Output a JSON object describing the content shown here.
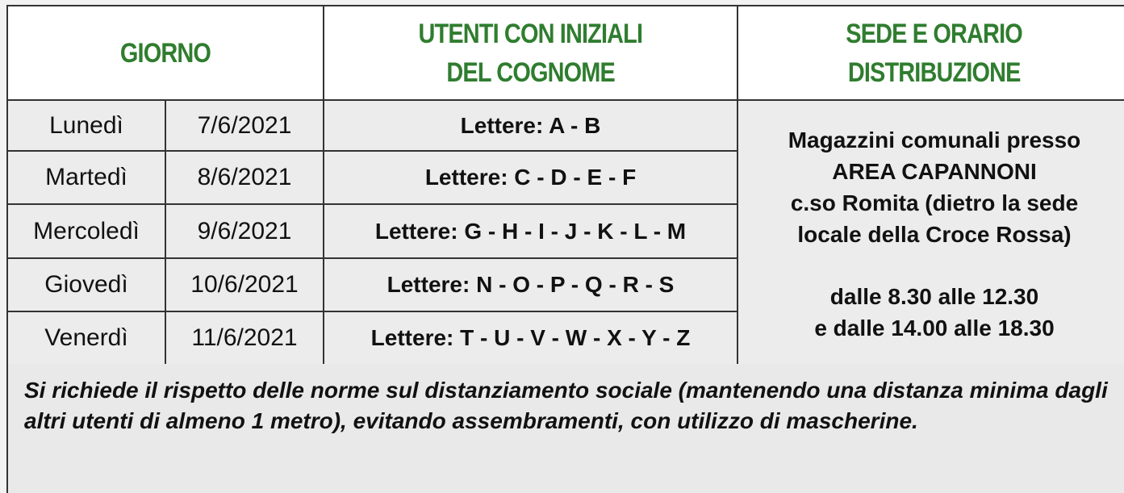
{
  "header": {
    "giorno": "GIORNO",
    "utenti_line1": "UTENTI CON INIZIALI",
    "utenti_line2": "DEL COGNOME",
    "sede_line1": "SEDE E ORARIO",
    "sede_line2": "DISTRIBUZIONE"
  },
  "rows": [
    {
      "day": "Lunedì",
      "date": "7/6/2021",
      "letters": "Lettere: A - B"
    },
    {
      "day": "Martedì",
      "date": "8/6/2021",
      "letters": "Lettere: C - D - E - F"
    },
    {
      "day": "Mercoledì",
      "date": "9/6/2021",
      "letters": "Lettere: G - H - I - J - K - L - M"
    },
    {
      "day": "Giovedì",
      "date": "10/6/2021",
      "letters": "Lettere: N - O - P - Q - R - S"
    },
    {
      "day": "Venerdì",
      "date": "11/6/2021",
      "letters": "Lettere: T - U - V - W - X - Y - Z"
    }
  ],
  "sede": {
    "line1": "Magazzini comunali presso",
    "line2": "AREA CAPANNONI",
    "line3": "c.so Romita (dietro la sede",
    "line4": "locale della Croce Rossa)",
    "hours1": "dalle 8.30 alle 12.30",
    "hours2": "e dalle 14.00 alle 18.30"
  },
  "footer": {
    "note": "Si richiede il rispetto delle norme sul distanziamento sociale (mantenendo una distanza minima dagli altri utenti di almeno 1 metro), evitando assembramenti, con utilizzo di mascherine."
  },
  "colors": {
    "header_text": "#2f7d2f",
    "cell_bg": "#ececec",
    "border": "#333333"
  }
}
